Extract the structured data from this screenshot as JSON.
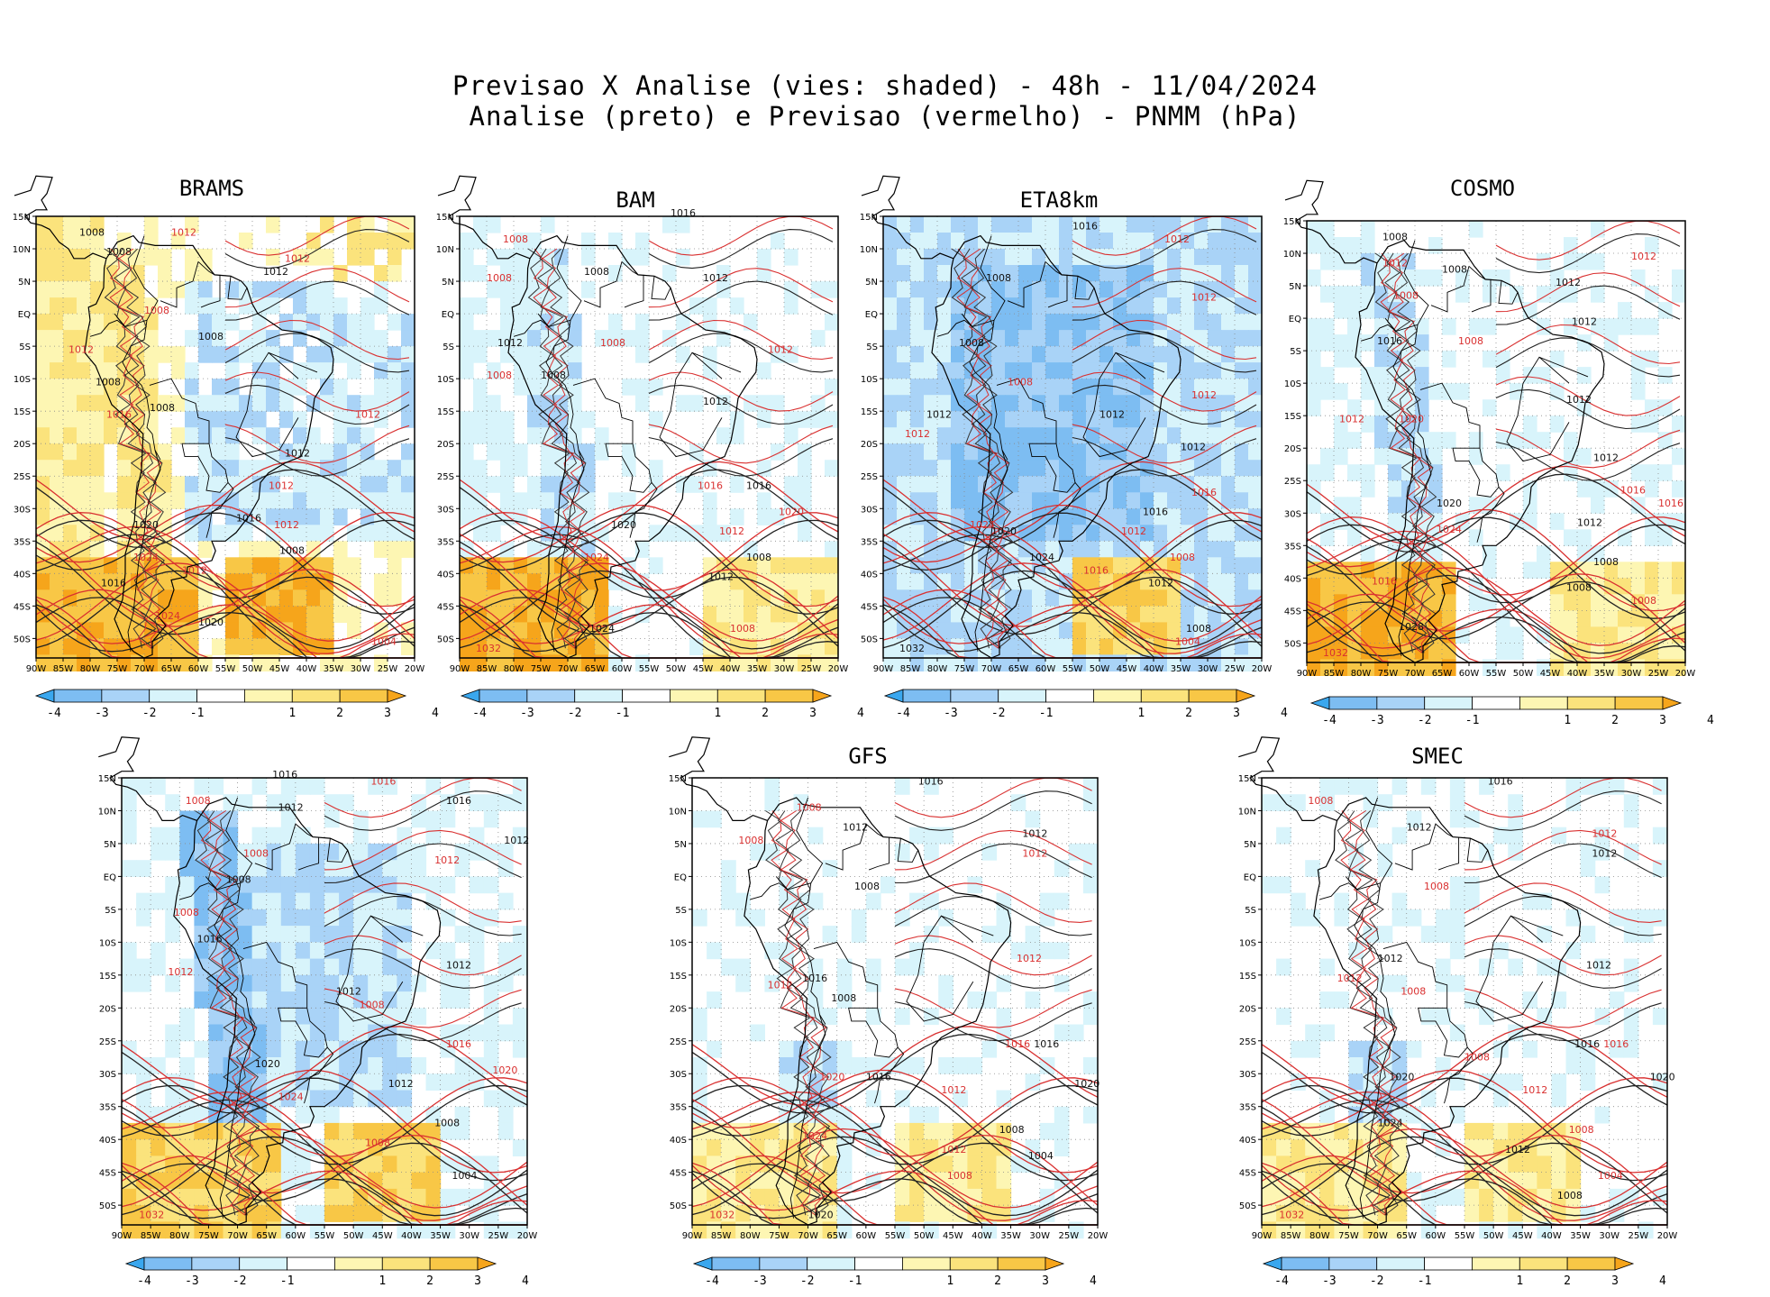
{
  "title": {
    "line1": "Previsao X Analise (vies: shaded) - 48h - 11/04/2024",
    "line2": "Analise (preto) e Previsao (vermelho) - PNMM (hPa)"
  },
  "map": {
    "lat_ticks": [
      "15N",
      "10N",
      "5N",
      "EQ",
      "5S",
      "10S",
      "15S",
      "20S",
      "25S",
      "30S",
      "35S",
      "40S",
      "45S",
      "50S"
    ],
    "lon_ticks": [
      "90W",
      "85W",
      "80W",
      "75W",
      "70W",
      "65W",
      "60W",
      "55W",
      "50W",
      "45W",
      "40W",
      "35W",
      "30W",
      "25W",
      "20W"
    ],
    "lat_range": [
      15,
      -53
    ],
    "lon_range": [
      -90,
      -20
    ],
    "grid": "dotted"
  },
  "colorbar": {
    "labels": [
      "-4",
      "-3",
      "-2",
      "-1",
      "1",
      "2",
      "3",
      "4"
    ],
    "colors": [
      "#3aa7ee",
      "#7dbdf2",
      "#a9d3f7",
      "#d8f4fb",
      "#ffffff",
      "#fdf6b3",
      "#fbe37c",
      "#f8c746",
      "#f6a51b"
    ]
  },
  "panels": [
    {
      "name": "BRAMS",
      "bias": "warm",
      "labels": [
        {
          "t": "1008",
          "lon": -82,
          "lat": 12
        },
        {
          "t": "1012",
          "lon": -65,
          "lat": 12
        },
        {
          "t": "1008",
          "lon": -77,
          "lat": 9
        },
        {
          "t": "1012",
          "lon": -44,
          "lat": 8
        },
        {
          "t": "1012",
          "lon": -48,
          "lat": 6
        },
        {
          "t": "1008",
          "lon": -70,
          "lat": 0
        },
        {
          "t": "1008",
          "lon": -60,
          "lat": -4
        },
        {
          "t": "1012",
          "lon": -84,
          "lat": -6
        },
        {
          "t": "1008",
          "lon": -79,
          "lat": -11
        },
        {
          "t": "1016",
          "lon": -77,
          "lat": -16
        },
        {
          "t": "1008",
          "lon": -69,
          "lat": -15
        },
        {
          "t": "1012",
          "lon": -31,
          "lat": -16
        },
        {
          "t": "1012",
          "lon": -44,
          "lat": -22
        },
        {
          "t": "1012",
          "lon": -47,
          "lat": -27
        },
        {
          "t": "1016",
          "lon": -53,
          "lat": -32
        },
        {
          "t": "1012",
          "lon": -46,
          "lat": -33
        },
        {
          "t": "1020",
          "lon": -72,
          "lat": -33
        },
        {
          "t": "1024",
          "lon": -72,
          "lat": -38
        },
        {
          "t": "1008",
          "lon": -45,
          "lat": -37
        },
        {
          "t": "1012",
          "lon": -63,
          "lat": -40
        },
        {
          "t": "1016",
          "lon": -78,
          "lat": -42
        },
        {
          "t": "1024",
          "lon": -68,
          "lat": -47
        },
        {
          "t": "1020",
          "lon": -60,
          "lat": -48
        },
        {
          "t": "1004",
          "lon": -28,
          "lat": -51
        }
      ]
    },
    {
      "name": "BAM",
      "bias": "mixed",
      "labels": [
        {
          "t": "1016",
          "lon": -51,
          "lat": 15
        },
        {
          "t": "1008",
          "lon": -82,
          "lat": 11
        },
        {
          "t": "1012",
          "lon": -45,
          "lat": 5
        },
        {
          "t": "1008",
          "lon": -85,
          "lat": 5
        },
        {
          "t": "1008",
          "lon": -67,
          "lat": 6
        },
        {
          "t": "1008",
          "lon": -64,
          "lat": -5
        },
        {
          "t": "1012",
          "lon": -83,
          "lat": -5
        },
        {
          "t": "1008",
          "lon": -85,
          "lat": -10
        },
        {
          "t": "1008",
          "lon": -75,
          "lat": -10
        },
        {
          "t": "1012",
          "lon": -33,
          "lat": -6
        },
        {
          "t": "1012",
          "lon": -45,
          "lat": -14
        },
        {
          "t": "1016",
          "lon": -46,
          "lat": -27
        },
        {
          "t": "1016",
          "lon": -37,
          "lat": -27
        },
        {
          "t": "1020",
          "lon": -31,
          "lat": -31
        },
        {
          "t": "1020",
          "lon": -62,
          "lat": -33
        },
        {
          "t": "1012",
          "lon": -42,
          "lat": -34
        },
        {
          "t": "1008",
          "lon": -37,
          "lat": -38
        },
        {
          "t": "1024",
          "lon": -67,
          "lat": -38
        },
        {
          "t": "1012",
          "lon": -44,
          "lat": -41
        },
        {
          "t": "1008",
          "lon": -40,
          "lat": -49
        },
        {
          "t": "1024",
          "lon": -66,
          "lat": -49
        },
        {
          "t": "1032",
          "lon": -87,
          "lat": -52
        }
      ]
    },
    {
      "name": "ETA8km",
      "bias": "cool",
      "labels": [
        {
          "t": "1016",
          "lon": -55,
          "lat": 13
        },
        {
          "t": "1012",
          "lon": -38,
          "lat": 11
        },
        {
          "t": "1008",
          "lon": -71,
          "lat": 5
        },
        {
          "t": "1012",
          "lon": -33,
          "lat": 2
        },
        {
          "t": "1008",
          "lon": -76,
          "lat": -5
        },
        {
          "t": "1008",
          "lon": -67,
          "lat": -11
        },
        {
          "t": "1012",
          "lon": -82,
          "lat": -16
        },
        {
          "t": "1012",
          "lon": -86,
          "lat": -19
        },
        {
          "t": "1012",
          "lon": -50,
          "lat": -16
        },
        {
          "t": "1012",
          "lon": -33,
          "lat": -13
        },
        {
          "t": "1012",
          "lon": -35,
          "lat": -21
        },
        {
          "t": "1016",
          "lon": -33,
          "lat": -28
        },
        {
          "t": "1016",
          "lon": -42,
          "lat": -31
        },
        {
          "t": "1024",
          "lon": -74,
          "lat": -33
        },
        {
          "t": "1020",
          "lon": -70,
          "lat": -34
        },
        {
          "t": "1012",
          "lon": -46,
          "lat": -34
        },
        {
          "t": "1024",
          "lon": -63,
          "lat": -38
        },
        {
          "t": "1008",
          "lon": -37,
          "lat": -38
        },
        {
          "t": "1012",
          "lon": -41,
          "lat": -42
        },
        {
          "t": "1016",
          "lon": -53,
          "lat": -40
        },
        {
          "t": "1008",
          "lon": -34,
          "lat": -49
        },
        {
          "t": "1004",
          "lon": -36,
          "lat": -51
        },
        {
          "t": "1032",
          "lon": -87,
          "lat": -52
        }
      ]
    },
    {
      "name": "COSMO",
      "bias": "mixed",
      "labels": [
        {
          "t": "1008",
          "lon": -76,
          "lat": 12
        },
        {
          "t": "1012",
          "lon": -76,
          "lat": 8
        },
        {
          "t": "1008",
          "lon": -65,
          "lat": 7
        },
        {
          "t": "1012",
          "lon": -30,
          "lat": 9
        },
        {
          "t": "1012",
          "lon": -44,
          "lat": 5
        },
        {
          "t": "1008",
          "lon": -74,
          "lat": 3
        },
        {
          "t": "1012",
          "lon": -41,
          "lat": -1
        },
        {
          "t": "1008",
          "lon": -62,
          "lat": -4
        },
        {
          "t": "1016",
          "lon": -77,
          "lat": -4
        },
        {
          "t": "1012",
          "lon": -84,
          "lat": -16
        },
        {
          "t": "1012",
          "lon": -42,
          "lat": -13
        },
        {
          "t": "1020",
          "lon": -73,
          "lat": -16
        },
        {
          "t": "1012",
          "lon": -37,
          "lat": -22
        },
        {
          "t": "1016",
          "lon": -32,
          "lat": -27
        },
        {
          "t": "1020",
          "lon": -66,
          "lat": -29
        },
        {
          "t": "1016",
          "lon": -25,
          "lat": -29
        },
        {
          "t": "1012",
          "lon": -40,
          "lat": -32
        },
        {
          "t": "1024",
          "lon": -66,
          "lat": -33
        },
        {
          "t": "1008",
          "lon": -37,
          "lat": -38
        },
        {
          "t": "1016",
          "lon": -78,
          "lat": -41
        },
        {
          "t": "1008",
          "lon": -42,
          "lat": -42
        },
        {
          "t": "1008",
          "lon": -30,
          "lat": -44
        },
        {
          "t": "1028",
          "lon": -73,
          "lat": -48
        },
        {
          "t": "1032",
          "lon": -87,
          "lat": -52
        }
      ]
    },
    {
      "name": "",
      "bias": "cool-mixed",
      "labels": [
        {
          "t": "1016",
          "lon": -64,
          "lat": 15
        },
        {
          "t": "1016",
          "lon": -47,
          "lat": 14
        },
        {
          "t": "1016",
          "lon": -34,
          "lat": 11
        },
        {
          "t": "1008",
          "lon": -79,
          "lat": 11
        },
        {
          "t": "1012",
          "lon": -63,
          "lat": 10
        },
        {
          "t": "1008",
          "lon": -69,
          "lat": 3
        },
        {
          "t": "1012",
          "lon": -24,
          "lat": 5
        },
        {
          "t": "1012",
          "lon": -36,
          "lat": 2
        },
        {
          "t": "1008",
          "lon": -72,
          "lat": -1
        },
        {
          "t": "1008",
          "lon": -81,
          "lat": -6
        },
        {
          "t": "1016",
          "lon": -77,
          "lat": -10
        },
        {
          "t": "1012",
          "lon": -82,
          "lat": -15
        },
        {
          "t": "1012",
          "lon": -34,
          "lat": -14
        },
        {
          "t": "1008",
          "lon": -49,
          "lat": -20
        },
        {
          "t": "1012",
          "lon": -53,
          "lat": -18
        },
        {
          "t": "1016",
          "lon": -34,
          "lat": -26
        },
        {
          "t": "1020",
          "lon": -67,
          "lat": -29
        },
        {
          "t": "1024",
          "lon": -63,
          "lat": -34
        },
        {
          "t": "1012",
          "lon": -44,
          "lat": -32
        },
        {
          "t": "1020",
          "lon": -26,
          "lat": -30
        },
        {
          "t": "1008",
          "lon": -36,
          "lat": -38
        },
        {
          "t": "1008",
          "lon": -48,
          "lat": -41
        },
        {
          "t": "1004",
          "lon": -33,
          "lat": -46
        },
        {
          "t": "1032",
          "lon": -87,
          "lat": -52
        }
      ]
    },
    {
      "name": "GFS",
      "bias": "mild",
      "labels": [
        {
          "t": "1016",
          "lon": -51,
          "lat": 14
        },
        {
          "t": "1008",
          "lon": -72,
          "lat": 10
        },
        {
          "t": "1012",
          "lon": -64,
          "lat": 7
        },
        {
          "t": "1008",
          "lon": -82,
          "lat": 5
        },
        {
          "t": "1012",
          "lon": -33,
          "lat": 6
        },
        {
          "t": "1012",
          "lon": -33,
          "lat": 3
        },
        {
          "t": "1008",
          "lon": -62,
          "lat": -2
        },
        {
          "t": "1012",
          "lon": -34,
          "lat": -13
        },
        {
          "t": "1016",
          "lon": -71,
          "lat": -16
        },
        {
          "t": "1012",
          "lon": -77,
          "lat": -17
        },
        {
          "t": "1008",
          "lon": -66,
          "lat": -19
        },
        {
          "t": "1016",
          "lon": -36,
          "lat": -26
        },
        {
          "t": "1016",
          "lon": -31,
          "lat": -26
        },
        {
          "t": "1020",
          "lon": -68,
          "lat": -31
        },
        {
          "t": "1016",
          "lon": -60,
          "lat": -31
        },
        {
          "t": "1012",
          "lon": -47,
          "lat": -33
        },
        {
          "t": "1020",
          "lon": -24,
          "lat": -32
        },
        {
          "t": "1024",
          "lon": -71,
          "lat": -40
        },
        {
          "t": "1008",
          "lon": -37,
          "lat": -39
        },
        {
          "t": "1012",
          "lon": -47,
          "lat": -42
        },
        {
          "t": "1004",
          "lon": -32,
          "lat": -43
        },
        {
          "t": "1008",
          "lon": -46,
          "lat": -46
        },
        {
          "t": "1020",
          "lon": -70,
          "lat": -52
        },
        {
          "t": "1032",
          "lon": -87,
          "lat": -52
        }
      ]
    },
    {
      "name": "SMEC",
      "bias": "mild",
      "labels": [
        {
          "t": "1016",
          "lon": -51,
          "lat": 14
        },
        {
          "t": "1008",
          "lon": -82,
          "lat": 11
        },
        {
          "t": "1012",
          "lon": -65,
          "lat": 7
        },
        {
          "t": "1012",
          "lon": -33,
          "lat": 6
        },
        {
          "t": "1012",
          "lon": -33,
          "lat": 3
        },
        {
          "t": "1008",
          "lon": -62,
          "lat": -2
        },
        {
          "t": "1012",
          "lon": -70,
          "lat": -13
        },
        {
          "t": "1012",
          "lon": -77,
          "lat": -16
        },
        {
          "t": "1012",
          "lon": -34,
          "lat": -14
        },
        {
          "t": "1008",
          "lon": -66,
          "lat": -18
        },
        {
          "t": "1016",
          "lon": -36,
          "lat": -26
        },
        {
          "t": "1016",
          "lon": -31,
          "lat": -26
        },
        {
          "t": "1020",
          "lon": -68,
          "lat": -31
        },
        {
          "t": "1008",
          "lon": -55,
          "lat": -28
        },
        {
          "t": "1020",
          "lon": -23,
          "lat": -31
        },
        {
          "t": "1012",
          "lon": -45,
          "lat": -33
        },
        {
          "t": "1024",
          "lon": -70,
          "lat": -38
        },
        {
          "t": "1008",
          "lon": -37,
          "lat": -39
        },
        {
          "t": "1012",
          "lon": -48,
          "lat": -42
        },
        {
          "t": "1004",
          "lon": -32,
          "lat": -46
        },
        {
          "t": "1008",
          "lon": -39,
          "lat": -49
        },
        {
          "t": "1032",
          "lon": -87,
          "lat": -52
        }
      ]
    }
  ]
}
